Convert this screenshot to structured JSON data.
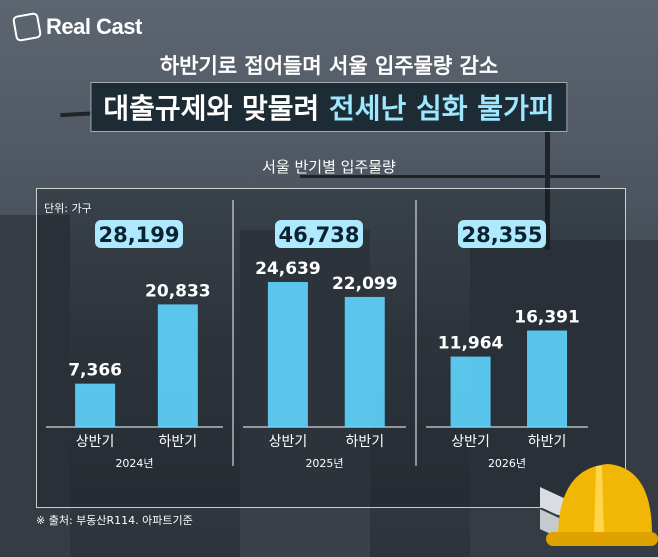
{
  "brand": {
    "name": "Real Cast"
  },
  "header": {
    "subtitle": "하반기로 접어들며 서울 입주물량 감소",
    "title_part1": "대출규제와 맞물려",
    "title_part2": "전세난 심화 불가피"
  },
  "footer": {
    "source": "※ 출처: 부동산R114. 아파트기준"
  },
  "colors": {
    "bar": "#5fd6ff",
    "total_badge": "#aeeaff",
    "headline_highlight": "#9de8ff"
  },
  "chart_data": {
    "type": "bar",
    "title": "서울 반기별 입주물량",
    "unit_label": "단위: 가구",
    "groups": [
      {
        "year": "2024년",
        "total": "28,199",
        "bars": [
          {
            "label": "상반기",
            "value": 7366,
            "value_label": "7,366"
          },
          {
            "label": "하반기",
            "value": 20833,
            "value_label": "20,833"
          }
        ]
      },
      {
        "year": "2025년",
        "total": "46,738",
        "bars": [
          {
            "label": "상반기",
            "value": 24639,
            "value_label": "24,639"
          },
          {
            "label": "하반기",
            "value": 22099,
            "value_label": "22,099"
          }
        ]
      },
      {
        "year": "2026년",
        "total": "28,355",
        "bars": [
          {
            "label": "상반기",
            "value": 11964,
            "value_label": "11,964"
          },
          {
            "label": "하반기",
            "value": 16391,
            "value_label": "16,391"
          }
        ]
      }
    ]
  }
}
